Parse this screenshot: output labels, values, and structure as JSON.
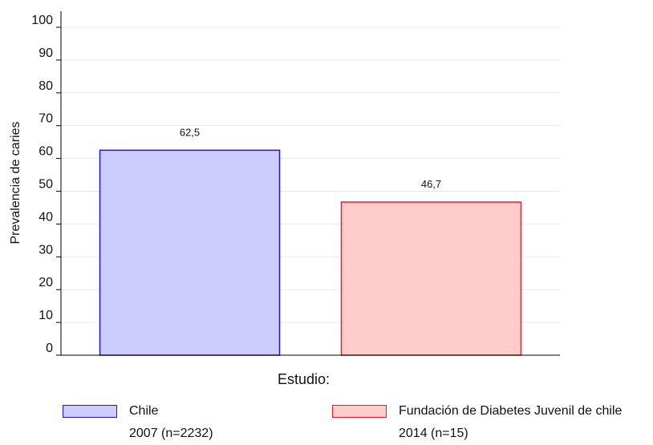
{
  "chart_data": {
    "type": "bar",
    "categories": [
      "Chile",
      "Fundación de Diabetes Juvenil de chile"
    ],
    "values": [
      62.5,
      46.7
    ],
    "data_labels": [
      "62,5",
      "46,7"
    ],
    "xlabel": "Estudio:",
    "ylabel": "Prevalencia de caries",
    "ylim": [
      0,
      100
    ],
    "yticks": [
      "0",
      "10",
      "20",
      "30",
      "40",
      "50",
      "60",
      "70",
      "80",
      "90",
      "100"
    ],
    "grid": true,
    "legend_position": "bottom",
    "legend": [
      {
        "line1": "Chile",
        "line2": "2007 (n=2232)",
        "fill": "#ccccff",
        "stroke": "#1a1acc"
      },
      {
        "line1": "Fundación de Diabetes Juvenil de chile",
        "line2": "2014 (n=15)",
        "fill": "#ffcccc",
        "stroke": "#e0202a"
      }
    ],
    "colors": {
      "grid": "#e8e8e8",
      "axis": "#000000"
    }
  }
}
